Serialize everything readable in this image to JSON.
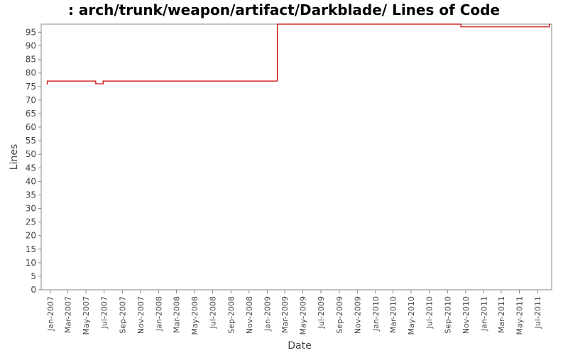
{
  "chart_data": {
    "type": "line",
    "title": ": arch/trunk/weapon/artifact/Darkblade/ Lines of Code",
    "xlabel": "Date",
    "ylabel": "Lines",
    "ylim": [
      0,
      98
    ],
    "yticks": [
      0,
      5,
      10,
      15,
      20,
      25,
      30,
      35,
      40,
      45,
      50,
      55,
      60,
      65,
      70,
      75,
      80,
      85,
      90,
      95
    ],
    "xlim": [
      "2006-12-01",
      "2011-08-18"
    ],
    "xticks": [
      {
        "date": "2007-01-01",
        "label": "Jan-2007"
      },
      {
        "date": "2007-03-01",
        "label": "Mar-2007"
      },
      {
        "date": "2007-05-01",
        "label": "May-2007"
      },
      {
        "date": "2007-07-01",
        "label": "Jul-2007"
      },
      {
        "date": "2007-09-01",
        "label": "Sep-2007"
      },
      {
        "date": "2007-11-01",
        "label": "Nov-2007"
      },
      {
        "date": "2008-01-01",
        "label": "Jan-2008"
      },
      {
        "date": "2008-03-01",
        "label": "Mar-2008"
      },
      {
        "date": "2008-05-01",
        "label": "May-2008"
      },
      {
        "date": "2008-07-01",
        "label": "Jul-2008"
      },
      {
        "date": "2008-09-01",
        "label": "Sep-2008"
      },
      {
        "date": "2008-11-01",
        "label": "Nov-2008"
      },
      {
        "date": "2009-01-01",
        "label": "Jan-2009"
      },
      {
        "date": "2009-03-01",
        "label": "Mar-2009"
      },
      {
        "date": "2009-05-01",
        "label": "May-2009"
      },
      {
        "date": "2009-07-01",
        "label": "Jul-2009"
      },
      {
        "date": "2009-09-01",
        "label": "Sep-2009"
      },
      {
        "date": "2009-11-01",
        "label": "Nov-2009"
      },
      {
        "date": "2010-01-01",
        "label": "Jan-2010"
      },
      {
        "date": "2010-03-01",
        "label": "Mar-2010"
      },
      {
        "date": "2010-05-01",
        "label": "May-2010"
      },
      {
        "date": "2010-07-01",
        "label": "Jul-2010"
      },
      {
        "date": "2010-09-01",
        "label": "Sep-2010"
      },
      {
        "date": "2010-11-01",
        "label": "Nov-2010"
      },
      {
        "date": "2011-01-01",
        "label": "Jan-2011"
      },
      {
        "date": "2011-03-01",
        "label": "Mar-2011"
      },
      {
        "date": "2011-05-01",
        "label": "May-2011"
      },
      {
        "date": "2011-07-01",
        "label": "Jul-2011"
      }
    ],
    "grid": false,
    "step": true,
    "series": [
      {
        "color": "#cc0000",
        "points": [
          {
            "x": "2006-12-20",
            "y": 76
          },
          {
            "x": "2006-12-22",
            "y": 77
          },
          {
            "x": "2007-06-03",
            "y": 76
          },
          {
            "x": "2007-06-28",
            "y": 77
          },
          {
            "x": "2009-02-04",
            "y": 98
          },
          {
            "x": "2010-10-16",
            "y": 97
          },
          {
            "x": "2011-08-10",
            "y": 98
          },
          {
            "x": "2011-08-12",
            "y": 98
          }
        ]
      }
    ]
  }
}
